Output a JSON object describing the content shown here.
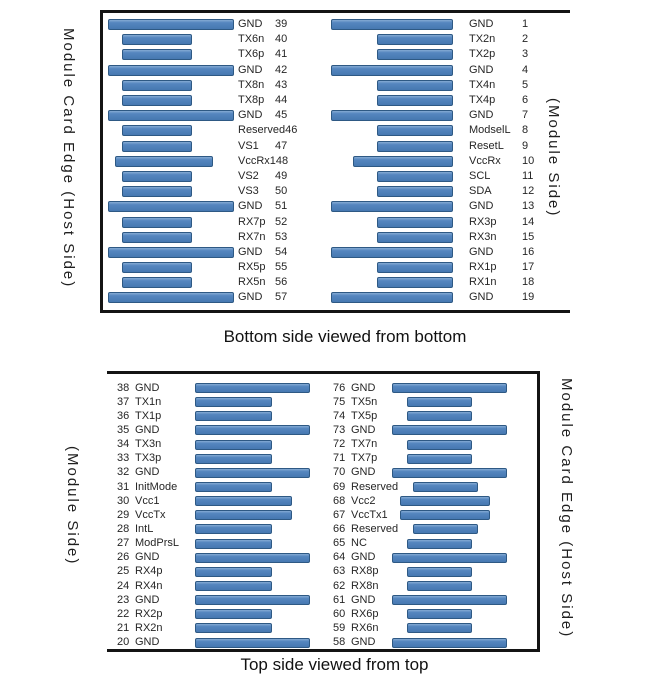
{
  "colors": {
    "pad_fill": "#4f81bd",
    "pad_border": "#2e5984",
    "frame": "#141414"
  },
  "top_section": {
    "title": "Bottom side viewed from bottom",
    "left_edge_label": "Module Card Edge (Host Side)",
    "right_edge_label": "(Module Side)",
    "left_column": [
      {
        "pin": "39",
        "name": "GND",
        "pad": "gnd"
      },
      {
        "pin": "40",
        "name": "TX6n",
        "pad": "sig"
      },
      {
        "pin": "41",
        "name": "TX6p",
        "pad": "sig"
      },
      {
        "pin": "42",
        "name": "GND",
        "pad": "gnd"
      },
      {
        "pin": "43",
        "name": "TX8n",
        "pad": "sig"
      },
      {
        "pin": "44",
        "name": "TX8p",
        "pad": "sig"
      },
      {
        "pin": "45",
        "name": "GND",
        "pad": "gnd"
      },
      {
        "pin": "46",
        "name": "Reserved",
        "pad": "sig"
      },
      {
        "pin": "47",
        "name": "VS1",
        "pad": "sig"
      },
      {
        "pin": "48",
        "name": "VccRx1",
        "pad": "pwr"
      },
      {
        "pin": "49",
        "name": "VS2",
        "pad": "sig"
      },
      {
        "pin": "50",
        "name": "VS3",
        "pad": "sig"
      },
      {
        "pin": "51",
        "name": "GND",
        "pad": "gnd"
      },
      {
        "pin": "52",
        "name": "RX7p",
        "pad": "sig"
      },
      {
        "pin": "53",
        "name": "RX7n",
        "pad": "sig"
      },
      {
        "pin": "54",
        "name": "GND",
        "pad": "gnd"
      },
      {
        "pin": "55",
        "name": "RX5p",
        "pad": "sig"
      },
      {
        "pin": "56",
        "name": "RX5n",
        "pad": "sig"
      },
      {
        "pin": "57",
        "name": "GND",
        "pad": "gnd"
      }
    ],
    "right_column": [
      {
        "pin": "1",
        "name": "GND",
        "pad": "gnd"
      },
      {
        "pin": "2",
        "name": "TX2n",
        "pad": "sig"
      },
      {
        "pin": "3",
        "name": "TX2p",
        "pad": "sig"
      },
      {
        "pin": "4",
        "name": "GND",
        "pad": "gnd"
      },
      {
        "pin": "5",
        "name": "TX4n",
        "pad": "sig"
      },
      {
        "pin": "6",
        "name": "TX4p",
        "pad": "sig"
      },
      {
        "pin": "7",
        "name": "GND",
        "pad": "gnd"
      },
      {
        "pin": "8",
        "name": "ModselL",
        "pad": "sig"
      },
      {
        "pin": "9",
        "name": "ResetL",
        "pad": "sig"
      },
      {
        "pin": "10",
        "name": "VccRx",
        "pad": "pwr"
      },
      {
        "pin": "11",
        "name": "SCL",
        "pad": "sig"
      },
      {
        "pin": "12",
        "name": "SDA",
        "pad": "sig"
      },
      {
        "pin": "13",
        "name": "GND",
        "pad": "gnd"
      },
      {
        "pin": "14",
        "name": "RX3p",
        "pad": "sig"
      },
      {
        "pin": "15",
        "name": "RX3n",
        "pad": "sig"
      },
      {
        "pin": "16",
        "name": "GND",
        "pad": "gnd"
      },
      {
        "pin": "17",
        "name": "RX1p",
        "pad": "sig"
      },
      {
        "pin": "18",
        "name": "RX1n",
        "pad": "sig"
      },
      {
        "pin": "19",
        "name": "GND",
        "pad": "gnd"
      }
    ]
  },
  "bottom_section": {
    "title": "Top side viewed from top",
    "left_edge_label": "(Module Side)",
    "right_edge_label": "Module Card Edge (Host Side)",
    "left_column": [
      {
        "pin": "38",
        "name": "GND",
        "pad": "gnd"
      },
      {
        "pin": "37",
        "name": "TX1n",
        "pad": "sig"
      },
      {
        "pin": "36",
        "name": "TX1p",
        "pad": "sig"
      },
      {
        "pin": "35",
        "name": "GND",
        "pad": "gnd"
      },
      {
        "pin": "34",
        "name": "TX3n",
        "pad": "sig"
      },
      {
        "pin": "33",
        "name": "TX3p",
        "pad": "sig"
      },
      {
        "pin": "32",
        "name": "GND",
        "pad": "gnd"
      },
      {
        "pin": "31",
        "name": "InitMode",
        "pad": "sig"
      },
      {
        "pin": "30",
        "name": "Vcc1",
        "pad": "pwr"
      },
      {
        "pin": "29",
        "name": "VccTx",
        "pad": "pwr"
      },
      {
        "pin": "28",
        "name": "IntL",
        "pad": "sig"
      },
      {
        "pin": "27",
        "name": "ModPrsL",
        "pad": "sig"
      },
      {
        "pin": "26",
        "name": "GND",
        "pad": "gnd"
      },
      {
        "pin": "25",
        "name": "RX4p",
        "pad": "sig"
      },
      {
        "pin": "24",
        "name": "RX4n",
        "pad": "sig"
      },
      {
        "pin": "23",
        "name": "GND",
        "pad": "gnd"
      },
      {
        "pin": "22",
        "name": "RX2p",
        "pad": "sig"
      },
      {
        "pin": "21",
        "name": "RX2n",
        "pad": "sig"
      },
      {
        "pin": "20",
        "name": "GND",
        "pad": "gnd"
      }
    ],
    "right_column": [
      {
        "pin": "76",
        "name": "GND",
        "pad": "gnd"
      },
      {
        "pin": "75",
        "name": "TX5n",
        "pad": "sig"
      },
      {
        "pin": "74",
        "name": "TX5p",
        "pad": "sig"
      },
      {
        "pin": "73",
        "name": "GND",
        "pad": "gnd"
      },
      {
        "pin": "72",
        "name": "TX7n",
        "pad": "sig"
      },
      {
        "pin": "71",
        "name": "TX7p",
        "pad": "sig"
      },
      {
        "pin": "70",
        "name": "GND",
        "pad": "gnd"
      },
      {
        "pin": "69",
        "name": "Reserved",
        "pad": "sig"
      },
      {
        "pin": "68",
        "name": "Vcc2",
        "pad": "pwr"
      },
      {
        "pin": "67",
        "name": "VccTx1",
        "pad": "pwr"
      },
      {
        "pin": "66",
        "name": "Reserved",
        "pad": "sig"
      },
      {
        "pin": "65",
        "name": "NC",
        "pad": "sig"
      },
      {
        "pin": "64",
        "name": "GND",
        "pad": "gnd"
      },
      {
        "pin": "63",
        "name": "RX8p",
        "pad": "sig"
      },
      {
        "pin": "62",
        "name": "RX8n",
        "pad": "sig"
      },
      {
        "pin": "61",
        "name": "GND",
        "pad": "gnd"
      },
      {
        "pin": "60",
        "name": "RX6p",
        "pad": "sig"
      },
      {
        "pin": "59",
        "name": "RX6n",
        "pad": "sig"
      },
      {
        "pin": "58",
        "name": "GND",
        "pad": "gnd"
      }
    ]
  }
}
